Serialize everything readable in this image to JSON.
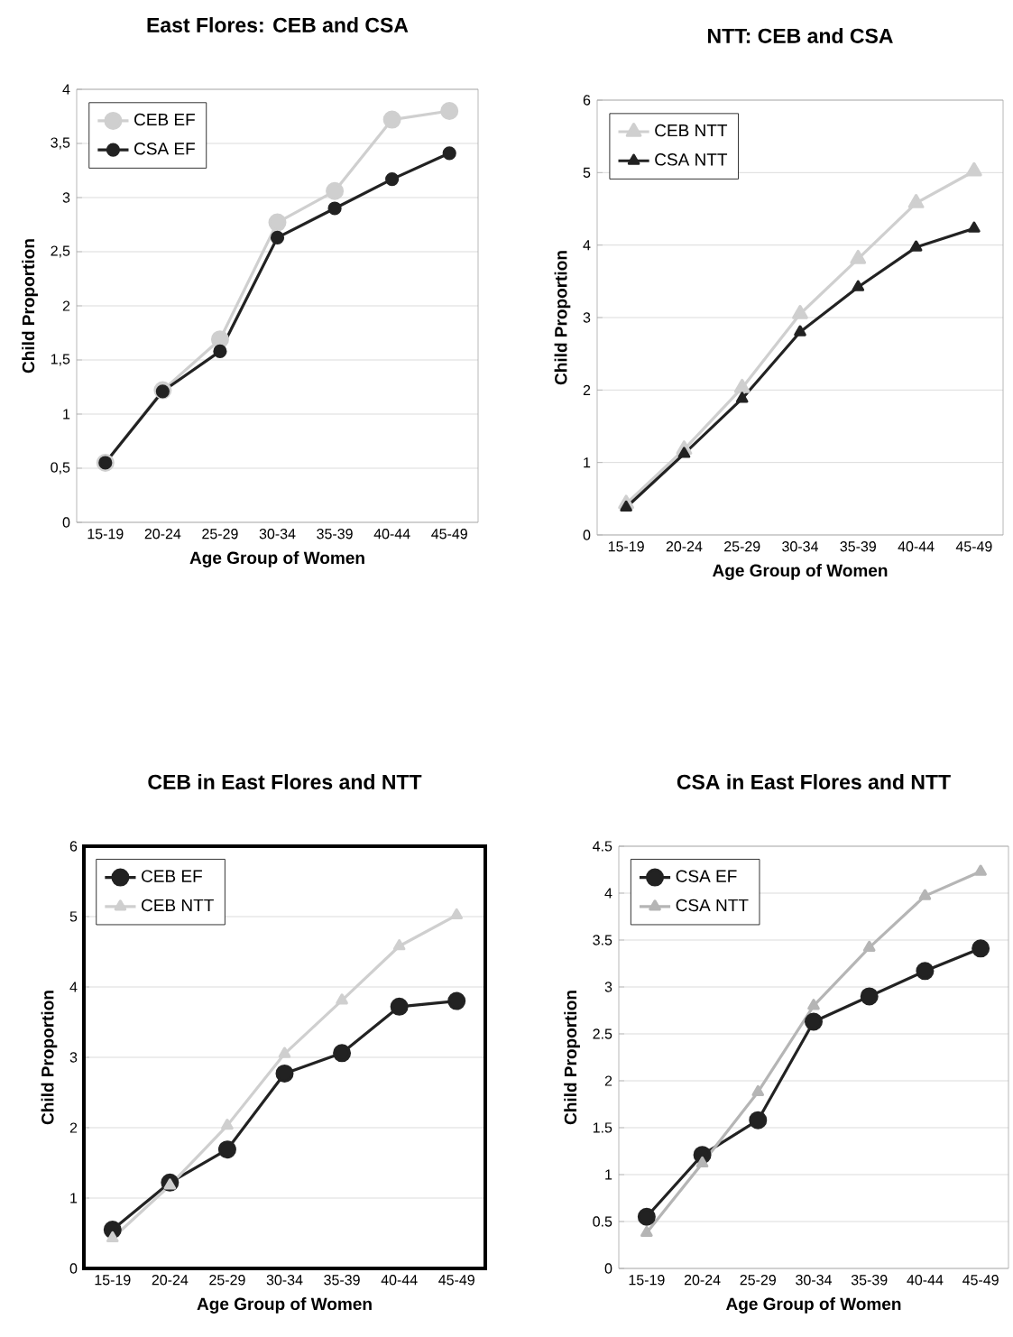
{
  "chart_data": [
    {
      "type": "line",
      "title": "East Flores: CEB and CSA",
      "xlabel": "Age Group of Women",
      "ylabel": "Child Proportion",
      "categories": [
        "15-19",
        "20-24",
        "25-29",
        "30-34",
        "35-39",
        "40-44",
        "45-49"
      ],
      "series": [
        {
          "name": "CEB EF",
          "color": "#cfcfcf",
          "marker": "circle",
          "values": [
            0.55,
            1.22,
            1.69,
            2.77,
            3.06,
            3.72,
            3.8
          ]
        },
        {
          "name": "CSA EF",
          "color": "#222222",
          "marker": "circle",
          "values": [
            0.55,
            1.21,
            1.58,
            2.63,
            2.9,
            3.17,
            3.41
          ]
        }
      ],
      "ylim": [
        0,
        4
      ],
      "yticks": [
        0,
        {
          "value": 0.5,
          "label": "0,5"
        },
        1,
        {
          "value": 1.5,
          "label": "1,5"
        },
        2,
        {
          "value": 2.5,
          "label": "2,5"
        },
        3,
        {
          "value": 3.5,
          "label": "3,5"
        },
        4
      ],
      "grid": "y",
      "legend": "top left"
    },
    {
      "type": "line",
      "title": "NTT: CEB and CSA",
      "xlabel": "Age Group of Women",
      "ylabel": "Child Proportion",
      "categories": [
        "15-19",
        "20-24",
        "25-29",
        "30-34",
        "35-39",
        "40-44",
        "45-49"
      ],
      "series": [
        {
          "name": "CEB NTT",
          "color": "#cfcfcf",
          "marker": "triangle",
          "values": [
            0.43,
            1.18,
            2.03,
            3.05,
            3.81,
            4.58,
            5.02
          ]
        },
        {
          "name": "CSA NTT",
          "color": "#222222",
          "marker": "triangle",
          "values": [
            0.38,
            1.12,
            1.88,
            2.8,
            3.42,
            3.97,
            4.23
          ]
        }
      ],
      "ylim": [
        0,
        6
      ],
      "yticks": [
        0,
        1,
        2,
        3,
        4,
        5,
        6
      ],
      "grid": "y",
      "legend": "top left"
    },
    {
      "type": "line",
      "title": "CEB in East Flores and NTT",
      "xlabel": "Age Group of Women",
      "ylabel": "Child Proportion",
      "categories": [
        "15-19",
        "20-24",
        "25-29",
        "30-34",
        "35-39",
        "40-44",
        "45-49"
      ],
      "series": [
        {
          "name": "CEB EF",
          "color": "#222222",
          "marker": "circle",
          "values": [
            0.55,
            1.22,
            1.69,
            2.77,
            3.06,
            3.72,
            3.8
          ]
        },
        {
          "name": "CEB NTT",
          "color": "#cfcfcf",
          "marker": "triangle",
          "values": [
            0.43,
            1.18,
            2.03,
            3.05,
            3.81,
            4.58,
            5.02
          ]
        }
      ],
      "ylim": [
        0,
        6
      ],
      "yticks": [
        0,
        1,
        2,
        3,
        4,
        5,
        6
      ],
      "grid": "y",
      "legend": "top left"
    },
    {
      "type": "line",
      "title": "CSA in East Flores and NTT",
      "xlabel": "Age Group of Women",
      "ylabel": "Child Proportion",
      "categories": [
        "15-19",
        "20-24",
        "25-29",
        "30-34",
        "35-39",
        "40-44",
        "45-49"
      ],
      "series": [
        {
          "name": "CSA EF",
          "color": "#222222",
          "marker": "circle",
          "values": [
            0.55,
            1.21,
            1.58,
            2.63,
            2.9,
            3.17,
            3.41
          ]
        },
        {
          "name": "CSA NTT",
          "color": "#b5b5b5",
          "marker": "triangle",
          "values": [
            0.38,
            1.12,
            1.88,
            2.8,
            3.42,
            3.97,
            4.23
          ]
        }
      ],
      "ylim": [
        0,
        4.5
      ],
      "yticks": [
        0,
        0.5,
        1,
        1.5,
        2,
        2.5,
        3,
        3.5,
        4,
        4.5
      ],
      "grid": "y",
      "legend": "top left"
    }
  ]
}
